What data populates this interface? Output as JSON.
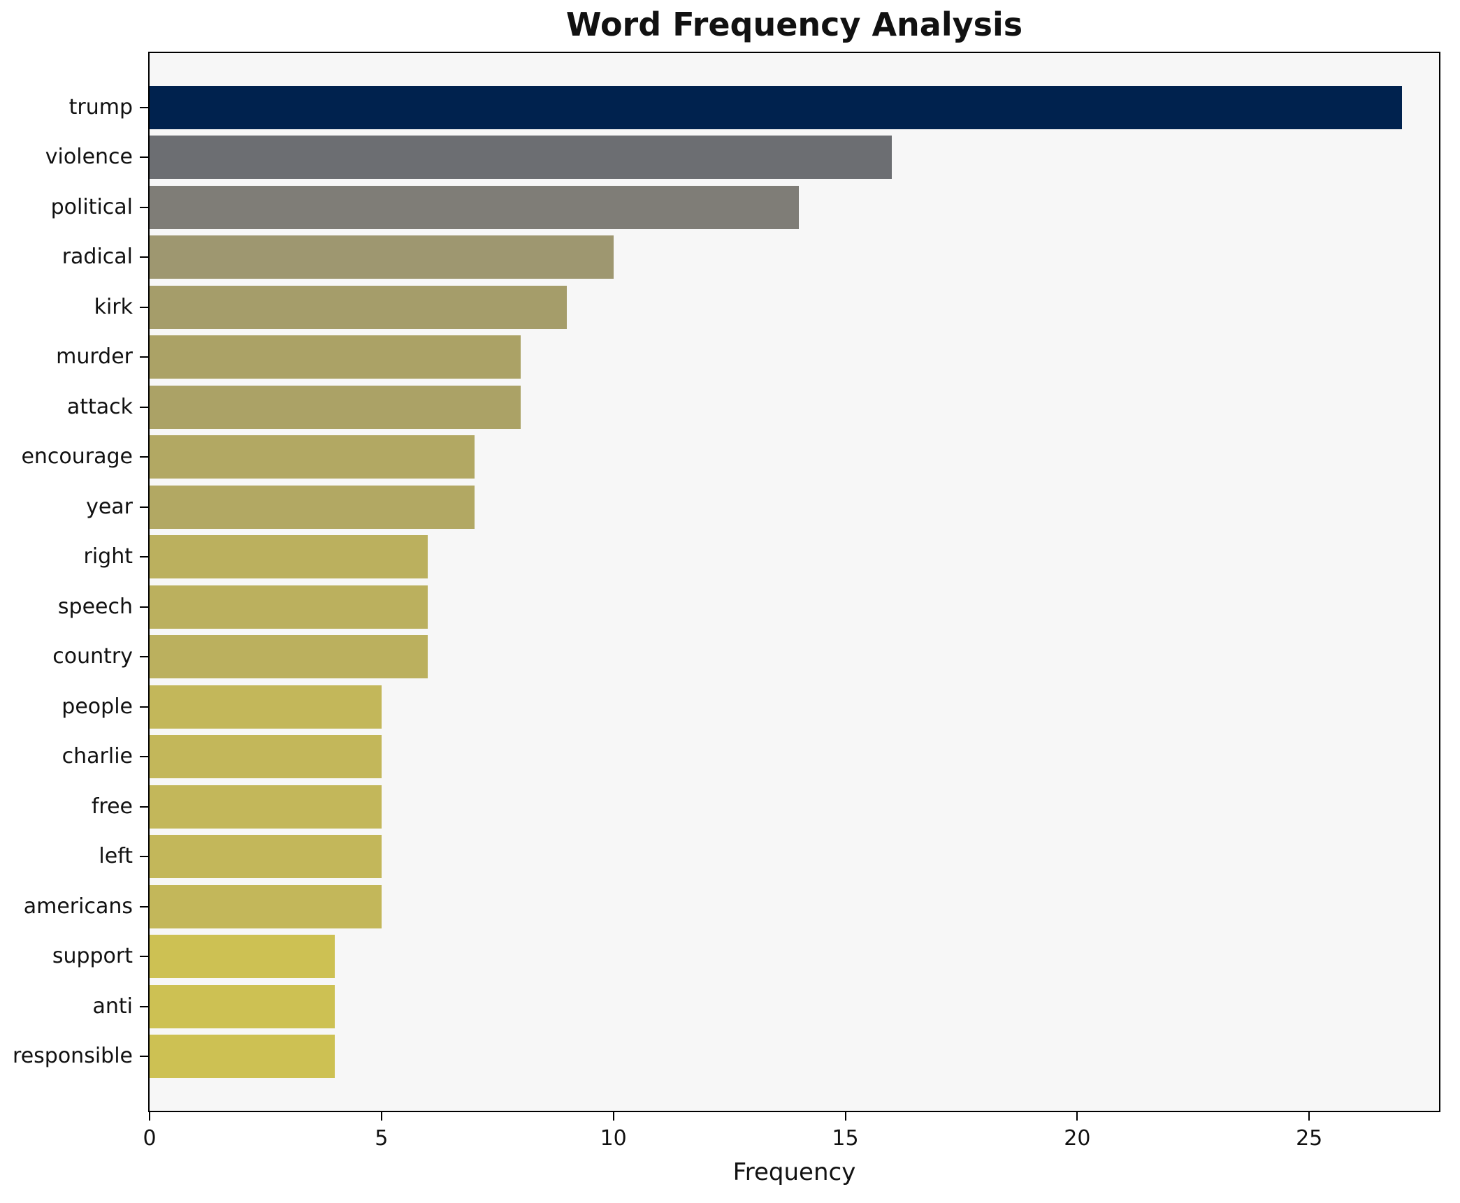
{
  "chart_data": {
    "type": "bar",
    "orientation": "horizontal",
    "title": "Word Frequency Analysis",
    "xlabel": "Frequency",
    "ylabel": "",
    "categories": [
      "trump",
      "violence",
      "political",
      "radical",
      "kirk",
      "murder",
      "attack",
      "encourage",
      "year",
      "right",
      "speech",
      "country",
      "people",
      "charlie",
      "free",
      "left",
      "americans",
      "support",
      "anti",
      "responsible"
    ],
    "values": [
      27,
      16,
      14,
      10,
      9,
      8,
      8,
      7,
      7,
      6,
      6,
      6,
      5,
      5,
      5,
      5,
      5,
      4,
      4,
      4
    ],
    "bar_colors": [
      "#00224e",
      "#6c6e72",
      "#7f7d77",
      "#9e9770",
      "#a59d6a",
      "#aba266",
      "#aba266",
      "#b2a863",
      "#b2a863",
      "#bbb05e",
      "#bbb05e",
      "#bbb05e",
      "#c3b75a",
      "#c3b75a",
      "#c3b75a",
      "#c3b75a",
      "#c3b75a",
      "#cdc153",
      "#cdc153",
      "#cdc153"
    ],
    "xticks": [
      0,
      5,
      10,
      15,
      20,
      25
    ],
    "xlim": [
      0,
      27.8
    ],
    "grid": false,
    "legend": "none",
    "plot_background": "#f7f7f7",
    "figure_background": "#ffffff",
    "axis_color": "#000000"
  }
}
